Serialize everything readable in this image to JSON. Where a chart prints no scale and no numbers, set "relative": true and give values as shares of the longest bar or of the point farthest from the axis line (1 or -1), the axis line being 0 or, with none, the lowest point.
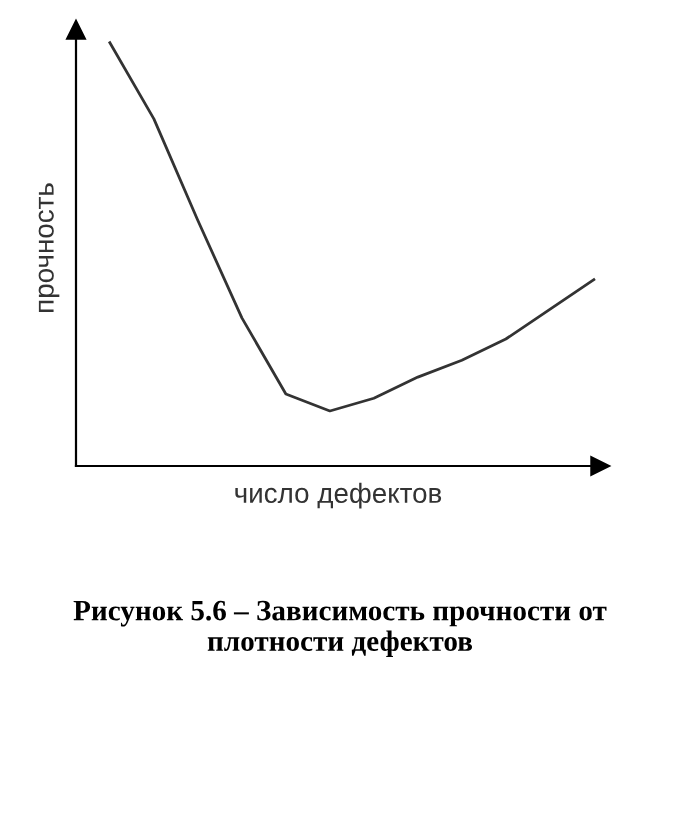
{
  "chart_data": {
    "type": "line",
    "relative": true,
    "xlabel": "число дефектов",
    "ylabel": "прочность",
    "categories": [
      null,
      null,
      null,
      null,
      null,
      null,
      null,
      null,
      null,
      null,
      null,
      null
    ],
    "series": [
      {
        "color": "#333333",
        "values": [
          1.0,
          0.82,
          0.58,
          0.35,
          0.17,
          0.13,
          0.16,
          0.21,
          0.25,
          0.3,
          0.37,
          0.44
        ]
      }
    ],
    "annotations": [
      "Рисунок 5.6 – Зависимость прочности от плотности дефектов"
    ],
    "legend": false,
    "marker": "none",
    "line_style": "solid"
  }
}
